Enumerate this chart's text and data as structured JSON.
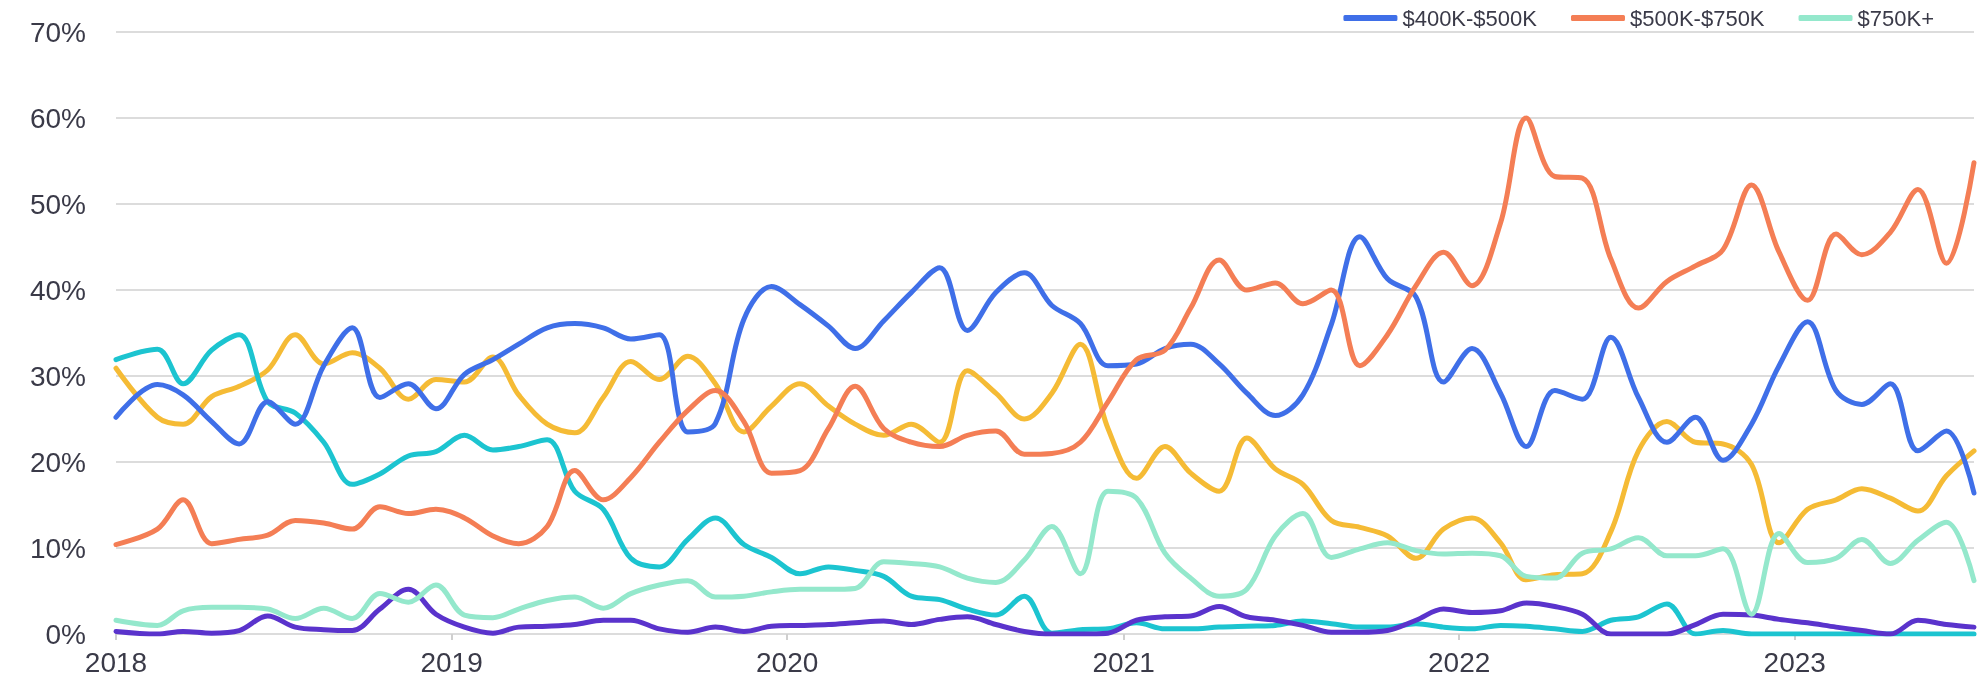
{
  "chart_data": {
    "type": "line",
    "x": [
      "2018-01-01",
      "2018-02-15",
      "2018-03-15",
      "2018-04-15",
      "2018-05-15",
      "2018-06-15",
      "2018-07-15",
      "2018-08-15",
      "2018-09-15",
      "2018-10-15",
      "2018-11-15",
      "2018-12-15",
      "2019-01-15",
      "2019-02-15",
      "2019-03-15",
      "2019-04-15",
      "2019-05-15",
      "2019-06-15",
      "2019-07-15",
      "2019-08-15",
      "2019-09-15",
      "2019-10-15",
      "2019-11-15",
      "2019-12-15",
      "2020-01-15",
      "2020-02-15",
      "2020-03-15",
      "2020-04-15",
      "2020-05-15",
      "2020-06-15",
      "2020-07-15",
      "2020-08-15",
      "2020-09-15",
      "2020-10-15",
      "2020-11-15",
      "2020-12-15",
      "2021-01-15",
      "2021-02-15",
      "2021-03-15",
      "2021-04-15",
      "2021-05-15",
      "2021-06-15",
      "2021-07-15",
      "2021-08-15",
      "2021-09-15",
      "2021-10-15",
      "2021-11-15",
      "2021-12-15",
      "2022-01-15",
      "2022-02-15",
      "2022-03-15",
      "2022-04-15",
      "2022-05-15",
      "2022-06-15",
      "2022-07-15",
      "2022-08-15",
      "2022-09-15",
      "2022-10-15",
      "2022-11-15",
      "2022-12-15",
      "2023-01-15",
      "2023-02-15",
      "2023-03-15",
      "2023-04-15",
      "2023-05-15",
      "2023-06-15",
      "2023-07-15"
    ],
    "xlim": [
      "2018-01-01",
      "2023-07-15"
    ],
    "xticks": [
      "2018",
      "2019",
      "2020",
      "2021",
      "2022",
      "2023"
    ],
    "ylim": [
      0,
      70
    ],
    "yticks": [
      {
        "value": 0,
        "label": "0%"
      },
      {
        "value": 10,
        "label": "10%"
      },
      {
        "value": 20,
        "label": "20%"
      },
      {
        "value": 30,
        "label": "30%"
      },
      {
        "value": 40,
        "label": "40%"
      },
      {
        "value": 50,
        "label": "50%"
      },
      {
        "value": 60,
        "label": "60%"
      },
      {
        "value": 70,
        "label": "70%"
      }
    ],
    "grid": "y",
    "legend": "top right",
    "marker": "none",
    "line_style": "solid",
    "series": [
      {
        "color": "#f5bb35",
        "values": [
          30.9,
          25.2,
          24.4,
          27.6,
          28.8,
          30.7,
          34.8,
          31.4,
          32.7,
          30.9,
          27.3,
          29.6,
          29.3,
          32.2,
          27.8,
          24.4,
          23.4,
          27.5,
          31.7,
          29.6,
          32.3,
          29.1,
          23.5,
          26.5,
          29.1,
          26.5,
          24.4,
          23.1,
          24.4,
          22.3,
          30.6,
          28.0,
          25.0,
          28.0,
          33.7,
          23.9,
          18.1,
          21.8,
          18.7,
          16.6,
          22.8,
          19.2,
          17.4,
          13.2,
          12.4,
          11.4,
          8.8,
          12.2,
          13.5,
          10.6,
          6.3,
          6.9,
          7.0,
          11.9,
          21.3,
          24.7,
          22.3,
          22.1,
          19.7,
          10.6,
          14.5,
          15.6,
          16.9,
          15.8,
          14.3,
          18.4,
          21.3
        ]
      },
      {
        "color": "#1cc4d0",
        "values": [
          31.9,
          33.1,
          29.1,
          33.0,
          34.8,
          27.0,
          25.7,
          22.3,
          17.4,
          18.6,
          20.7,
          21.2,
          23.1,
          21.4,
          21.8,
          22.6,
          16.6,
          14.5,
          8.8,
          7.8,
          11.0,
          13.5,
          10.4,
          8.9,
          7.0,
          7.8,
          7.4,
          6.7,
          4.4,
          4.0,
          2.9,
          2.2,
          4.4,
          0.1,
          0.5,
          0.6,
          1.3,
          0.6,
          0.6,
          0.8,
          0.9,
          1.0,
          1.5,
          1.2,
          0.8,
          0.8,
          1.2,
          0.8,
          0.6,
          1.0,
          0.9,
          0.6,
          0.3,
          1.6,
          2.0,
          3.5,
          0.0,
          0.4,
          0.0,
          0.0,
          0.0,
          0.0,
          0.0,
          0.0,
          0.0,
          0.0,
          0.0
        ]
      },
      {
        "color": "#5a33cc",
        "values": [
          0.3,
          0.0,
          0.3,
          0.1,
          0.4,
          2.1,
          0.8,
          0.5,
          0.4,
          2.9,
          5.2,
          2.3,
          0.8,
          0.1,
          0.8,
          0.9,
          1.1,
          1.6,
          1.6,
          0.6,
          0.2,
          0.8,
          0.3,
          0.9,
          1.0,
          1.1,
          1.3,
          1.5,
          1.1,
          1.7,
          2.0,
          1.1,
          0.3,
          0.0,
          0.0,
          0.1,
          1.6,
          2.0,
          2.1,
          3.2,
          2.0,
          1.6,
          1.0,
          0.2,
          0.2,
          0.4,
          1.6,
          2.9,
          2.5,
          2.7,
          3.6,
          3.2,
          2.3,
          0.0,
          0.0,
          0.0,
          1.1,
          2.3,
          2.2,
          1.7,
          1.3,
          0.8,
          0.4,
          0.0,
          1.6,
          1.1,
          0.8
        ]
      },
      {
        "name": "$400K-$500K",
        "color": "#3f6fe8",
        "values": [
          25.2,
          29.0,
          27.8,
          24.7,
          22.1,
          27.0,
          24.4,
          31.2,
          35.6,
          27.5,
          29.1,
          26.2,
          30.2,
          31.9,
          33.7,
          35.6,
          36.1,
          35.6,
          34.3,
          34.8,
          23.5,
          24.5,
          36.6,
          40.4,
          38.3,
          35.8,
          33.2,
          36.4,
          39.7,
          42.6,
          35.3,
          39.7,
          42.0,
          38.2,
          36.1,
          31.2,
          31.4,
          33.2,
          33.7,
          31.4,
          28.0,
          25.4,
          27.8,
          36.0,
          46.2,
          41.3,
          39.2,
          29.3,
          33.2,
          28.0,
          21.8,
          28.3,
          27.3,
          34.5,
          27.5,
          22.3,
          25.2,
          20.2,
          24.4,
          31.2,
          36.3,
          28.3,
          26.7,
          29.1,
          21.3,
          23.6,
          16.4
        ]
      },
      {
        "name": "$500K-$750K",
        "color": "#f47e55",
        "values": [
          10.4,
          12.2,
          15.6,
          10.5,
          11.0,
          11.5,
          13.2,
          12.9,
          12.2,
          14.8,
          14.0,
          14.5,
          13.5,
          11.4,
          10.5,
          12.5,
          19.0,
          15.6,
          18.2,
          22.3,
          26.0,
          28.3,
          24.7,
          18.7,
          19.0,
          23.9,
          28.8,
          23.9,
          22.3,
          21.8,
          23.1,
          23.6,
          20.9,
          21.0,
          22.3,
          27.0,
          31.9,
          33.0,
          37.9,
          43.5,
          40.0,
          40.8,
          38.4,
          40.0,
          31.2,
          34.8,
          40.5,
          44.4,
          40.5,
          47.8,
          60.0,
          53.2,
          53.0,
          43.6,
          37.9,
          41.0,
          42.8,
          44.7,
          52.2,
          44.4,
          38.8,
          46.5,
          44.1,
          46.7,
          51.7,
          43.1,
          54.8
        ]
      },
      {
        "name": "$750K+",
        "color": "#94e8cc",
        "values": [
          1.6,
          1.0,
          2.7,
          3.1,
          3.1,
          2.9,
          1.8,
          3.0,
          1.8,
          4.7,
          3.7,
          5.7,
          2.2,
          1.9,
          2.9,
          3.9,
          4.3,
          3.0,
          4.7,
          5.7,
          6.2,
          4.3,
          4.4,
          4.9,
          5.2,
          5.2,
          5.3,
          8.4,
          8.2,
          7.8,
          6.5,
          6.0,
          8.6,
          12.5,
          7.0,
          16.6,
          15.8,
          9.4,
          6.5,
          4.4,
          5.2,
          11.4,
          14.0,
          8.9,
          9.9,
          10.6,
          9.7,
          9.3,
          9.4,
          9.1,
          6.7,
          6.5,
          9.4,
          9.9,
          11.2,
          9.1,
          9.1,
          9.9,
          2.3,
          11.7,
          8.3,
          8.8,
          11.0,
          8.2,
          10.9,
          13.0,
          6.2
        ]
      }
    ]
  }
}
